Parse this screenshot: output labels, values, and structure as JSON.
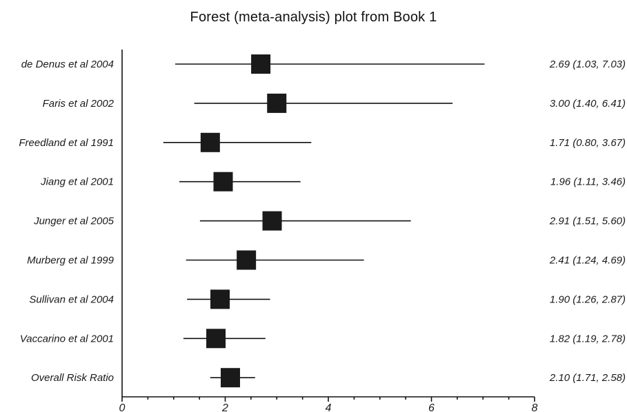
{
  "chart_data": {
    "type": "forest",
    "title": "Forest (meta-analysis) plot from Book 1",
    "xlabel": "",
    "ylabel": "",
    "xlim": [
      0,
      8
    ],
    "x_ticks": [
      0,
      2,
      4,
      6,
      8
    ],
    "x_tick_labels": [
      "0",
      "2",
      "4",
      "6",
      "8"
    ],
    "grid": false,
    "colors": {
      "marks": "#1a1a1a",
      "background": "#ffffff"
    },
    "studies": [
      {
        "label": "de Denus et al 2004",
        "estimate": 2.69,
        "lower": 1.03,
        "upper": 7.03,
        "ci_text": "2.69 (1.03, 7.03)"
      },
      {
        "label": "Faris et al 2002",
        "estimate": 3.0,
        "lower": 1.4,
        "upper": 6.41,
        "ci_text": "3.00 (1.40, 6.41)"
      },
      {
        "label": "Freedland et al 1991",
        "estimate": 1.71,
        "lower": 0.8,
        "upper": 3.67,
        "ci_text": "1.71 (0.80, 3.67)"
      },
      {
        "label": "Jiang et al 2001",
        "estimate": 1.96,
        "lower": 1.11,
        "upper": 3.46,
        "ci_text": "1.96 (1.11, 3.46)"
      },
      {
        "label": "Junger et al 2005",
        "estimate": 2.91,
        "lower": 1.51,
        "upper": 5.6,
        "ci_text": "2.91 (1.51, 5.60)"
      },
      {
        "label": "Murberg et al 1999",
        "estimate": 2.41,
        "lower": 1.24,
        "upper": 4.69,
        "ci_text": "2.41 (1.24, 4.69)"
      },
      {
        "label": "Sullivan et al 2004",
        "estimate": 1.9,
        "lower": 1.26,
        "upper": 2.87,
        "ci_text": "1.90 (1.26, 2.87)"
      },
      {
        "label": "Vaccarino et al 2001",
        "estimate": 1.82,
        "lower": 1.19,
        "upper": 2.78,
        "ci_text": "1.82 (1.19, 2.78)"
      },
      {
        "label": "Overall Risk Ratio",
        "estimate": 2.1,
        "lower": 1.71,
        "upper": 2.58,
        "ci_text": "2.10 (1.71, 2.58)"
      }
    ]
  }
}
